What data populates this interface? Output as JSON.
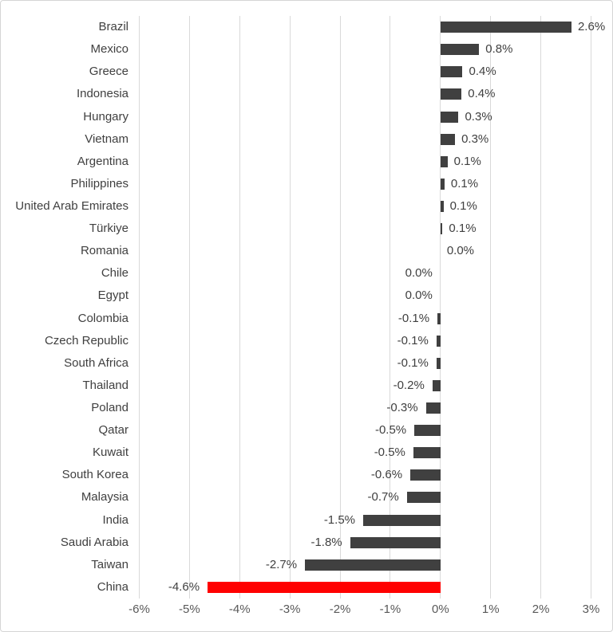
{
  "chart_data": {
    "type": "bar",
    "orientation": "horizontal",
    "title": "",
    "xlabel": "",
    "ylabel": "",
    "xlim": [
      -6,
      3
    ],
    "grid": true,
    "legend": false,
    "x_ticks": [
      "-6%",
      "-5%",
      "-4%",
      "-3%",
      "-2%",
      "-1%",
      "0%",
      "1%",
      "2%",
      "3%"
    ],
    "x_tick_values": [
      -6,
      -5,
      -4,
      -3,
      -2,
      -1,
      0,
      1,
      2,
      3
    ],
    "colors": {
      "bar": "#404040",
      "highlight": "#ff0000",
      "gridline": "#d9d9d9",
      "category_text": "#404040",
      "value_text": "#404040",
      "axis_text": "#595959"
    },
    "highlight_category": "China",
    "rows": [
      {
        "category": "Brazil",
        "value": 2.6,
        "label": "2.6%",
        "bar_value": 2.61,
        "label_side": "right",
        "highlight": false
      },
      {
        "category": "Mexico",
        "value": 0.8,
        "label": "0.8%",
        "bar_value": 0.77,
        "label_side": "right",
        "highlight": false
      },
      {
        "category": "Greece",
        "value": 0.4,
        "label": "0.4%",
        "bar_value": 0.44,
        "label_side": "right",
        "highlight": false
      },
      {
        "category": "Indonesia",
        "value": 0.4,
        "label": "0.4%",
        "bar_value": 0.42,
        "label_side": "right",
        "highlight": false
      },
      {
        "category": "Hungary",
        "value": 0.3,
        "label": "0.3%",
        "bar_value": 0.36,
        "label_side": "right",
        "highlight": false
      },
      {
        "category": "Vietnam",
        "value": 0.3,
        "label": "0.3%",
        "bar_value": 0.29,
        "label_side": "right",
        "highlight": false
      },
      {
        "category": "Argentina",
        "value": 0.1,
        "label": "0.1%",
        "bar_value": 0.14,
        "label_side": "right",
        "highlight": false
      },
      {
        "category": "Philippines",
        "value": 0.1,
        "label": "0.1%",
        "bar_value": 0.08,
        "label_side": "right",
        "highlight": false
      },
      {
        "category": "United Arab Emirates",
        "value": 0.1,
        "label": "0.1%",
        "bar_value": 0.06,
        "label_side": "right",
        "highlight": false
      },
      {
        "category": "Türkiye",
        "value": 0.1,
        "label": "0.1%",
        "bar_value": 0.04,
        "label_side": "right",
        "highlight": false
      },
      {
        "category": "Romania",
        "value": 0.0,
        "label": "0.0%",
        "bar_value": 0.0,
        "label_side": "right",
        "highlight": false
      },
      {
        "category": "Chile",
        "value": 0.0,
        "label": "0.0%",
        "bar_value": 0.0,
        "label_side": "left",
        "highlight": false
      },
      {
        "category": "Egypt",
        "value": 0.0,
        "label": "0.0%",
        "bar_value": 0.0,
        "label_side": "left",
        "highlight": false
      },
      {
        "category": "Colombia",
        "value": -0.1,
        "label": "-0.1%",
        "bar_value": -0.06,
        "label_side": "left",
        "highlight": false
      },
      {
        "category": "Czech Republic",
        "value": -0.1,
        "label": "-0.1%",
        "bar_value": -0.08,
        "label_side": "left",
        "highlight": false
      },
      {
        "category": "South Africa",
        "value": -0.1,
        "label": "-0.1%",
        "bar_value": -0.08,
        "label_side": "left",
        "highlight": false
      },
      {
        "category": "Thailand",
        "value": -0.2,
        "label": "-0.2%",
        "bar_value": -0.16,
        "label_side": "left",
        "highlight": false
      },
      {
        "category": "Poland",
        "value": -0.3,
        "label": "-0.3%",
        "bar_value": -0.29,
        "label_side": "left",
        "highlight": false
      },
      {
        "category": "Qatar",
        "value": -0.5,
        "label": "-0.5%",
        "bar_value": -0.52,
        "label_side": "left",
        "highlight": false
      },
      {
        "category": "Kuwait",
        "value": -0.5,
        "label": "-0.5%",
        "bar_value": -0.54,
        "label_side": "left",
        "highlight": false
      },
      {
        "category": "South Korea",
        "value": -0.6,
        "label": "-0.6%",
        "bar_value": -0.6,
        "label_side": "left",
        "highlight": false
      },
      {
        "category": "Malaysia",
        "value": -0.7,
        "label": "-0.7%",
        "bar_value": -0.67,
        "label_side": "left",
        "highlight": false
      },
      {
        "category": "India",
        "value": -1.5,
        "label": "-1.5%",
        "bar_value": -1.54,
        "label_side": "left",
        "highlight": false
      },
      {
        "category": "Saudi Arabia",
        "value": -1.8,
        "label": "-1.8%",
        "bar_value": -1.8,
        "label_side": "left",
        "highlight": false
      },
      {
        "category": "Taiwan",
        "value": -2.7,
        "label": "-2.7%",
        "bar_value": -2.7,
        "label_side": "left",
        "highlight": false
      },
      {
        "category": "China",
        "value": -4.6,
        "label": "-4.6%",
        "bar_value": -4.64,
        "label_side": "left",
        "highlight": true
      }
    ]
  }
}
